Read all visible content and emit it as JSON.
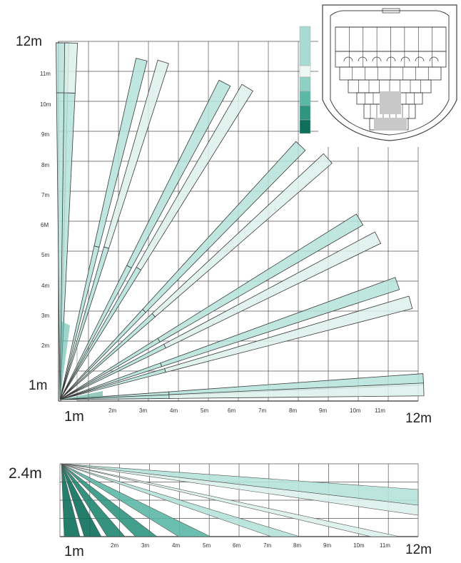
{
  "plan_view": {
    "y_axis": {
      "top_label": "12m",
      "origin_label": "1m",
      "small_labels": [
        "11m",
        "10m",
        "9m",
        "8m",
        "7m",
        "6M",
        "5m",
        "4m",
        "3m",
        "2m"
      ]
    },
    "x_axis": {
      "origin_label": "1m",
      "end_label": "12m",
      "small_labels": [
        "2m",
        "3m",
        "4m",
        "5m",
        "6m",
        "7m",
        "8m",
        "9m",
        "10m",
        "11m"
      ]
    }
  },
  "side_view": {
    "y_axis": {
      "top_label": "2.4m"
    },
    "x_axis": {
      "origin_label": "1m",
      "end_label": "12m",
      "small_labels": [
        "2m",
        "3m",
        "4m",
        "5m",
        "6m",
        "7m",
        "8m",
        "9m",
        "10m",
        "11m"
      ]
    }
  },
  "legend": {
    "colors": [
      "#a9dbd2",
      "#eef7f4",
      "#8fd0c4",
      "#5cb8a6",
      "#2e9680",
      "#0d6f5c"
    ]
  },
  "colors": {
    "grid": "#555555",
    "beam_light": "#b4e2d9",
    "beam_pale": "#ddf1ec",
    "beam_outline": "#3a3a3a",
    "dark_teal": "#0d6f5c"
  }
}
